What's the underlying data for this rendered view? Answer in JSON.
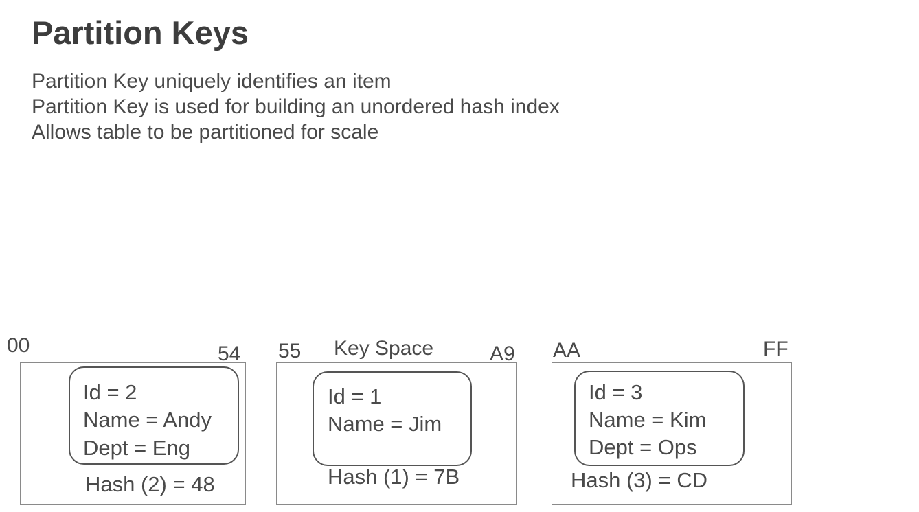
{
  "title": "Partition Keys",
  "bullets": [
    "Partition Key uniquely identifies an item",
    "Partition Key is used for building an unordered hash index",
    "Allows table to be partitioned for scale"
  ],
  "key_space_label": "Key Space",
  "partitions": [
    {
      "range_start": "00",
      "range_end": "54",
      "item": [
        "Id = 2",
        "Name = Andy",
        "Dept = Eng"
      ],
      "hash": "Hash (2) = 48"
    },
    {
      "range_start": "55",
      "range_end": "A9",
      "item": [
        "Id = 1",
        "Name = Jim"
      ],
      "hash": "Hash (1) =  7B"
    },
    {
      "range_start": "AA",
      "range_end": "FF",
      "item": [
        "Id = 3",
        "Name = Kim",
        "Dept = Ops"
      ],
      "hash": "Hash (3) = CD"
    }
  ]
}
